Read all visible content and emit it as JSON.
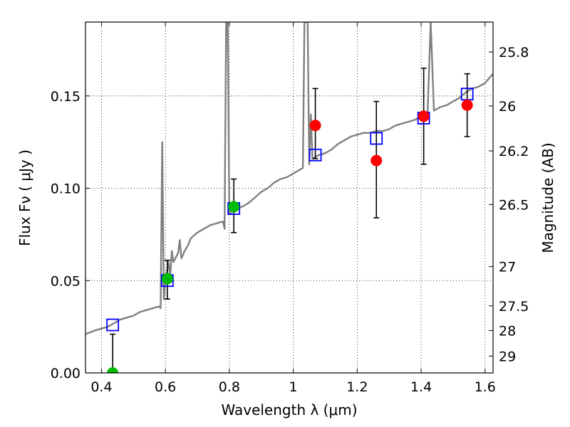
{
  "chart_data": {
    "type": "scatter",
    "xlabel": "Wavelength  λ (μm)",
    "ylabel": "Flux  Fν  ( μJy )",
    "y2label": "Magnitude (AB)",
    "xlim": [
      0.35,
      1.625
    ],
    "ylim": [
      0.0,
      0.19
    ],
    "grid": true,
    "x_ticks": [
      0.4,
      0.6,
      0.8,
      1.0,
      1.2,
      1.4,
      1.6
    ],
    "x_tick_labels": [
      "0.4",
      "0.6",
      "0.8",
      "1",
      "1.2",
      "1.4",
      "1.6"
    ],
    "y_ticks": [
      0.0,
      0.05,
      0.1,
      0.15
    ],
    "y_tick_labels": [
      "0.00",
      "0.05",
      "0.10",
      "0.15"
    ],
    "y2_ticks": [
      {
        "label": "25.8",
        "mag": 25.8
      },
      {
        "label": "26",
        "mag": 26.0
      },
      {
        "label": "26.2",
        "mag": 26.2
      },
      {
        "label": "26.5",
        "mag": 26.5
      },
      {
        "label": "27",
        "mag": 27.0
      },
      {
        "label": "27.5",
        "mag": 27.5
      },
      {
        "label": "28",
        "mag": 28.0
      },
      {
        "label": "29",
        "mag": 29.0
      }
    ],
    "model_spectrum": {
      "color": "#808080",
      "points": [
        [
          0.35,
          0.021
        ],
        [
          0.38,
          0.023
        ],
        [
          0.4,
          0.024
        ],
        [
          0.42,
          0.025
        ],
        [
          0.44,
          0.027
        ],
        [
          0.46,
          0.029
        ],
        [
          0.48,
          0.03
        ],
        [
          0.5,
          0.031
        ],
        [
          0.52,
          0.033
        ],
        [
          0.54,
          0.034
        ],
        [
          0.56,
          0.035
        ],
        [
          0.58,
          0.036
        ],
        [
          0.585,
          0.035
        ],
        [
          0.59,
          0.125
        ],
        [
          0.595,
          0.04
        ],
        [
          0.6,
          0.05
        ],
        [
          0.61,
          0.06
        ],
        [
          0.615,
          0.052
        ],
        [
          0.62,
          0.066
        ],
        [
          0.625,
          0.06
        ],
        [
          0.64,
          0.065
        ],
        [
          0.645,
          0.072
        ],
        [
          0.65,
          0.062
        ],
        [
          0.66,
          0.066
        ],
        [
          0.67,
          0.069
        ],
        [
          0.68,
          0.073
        ],
        [
          0.7,
          0.076
        ],
        [
          0.72,
          0.078
        ],
        [
          0.74,
          0.08
        ],
        [
          0.76,
          0.081
        ],
        [
          0.78,
          0.082
        ],
        [
          0.785,
          0.078
        ],
        [
          0.79,
          0.19
        ],
        [
          0.795,
          0.19
        ],
        [
          0.8,
          0.086
        ],
        [
          0.82,
          0.089
        ],
        [
          0.84,
          0.09
        ],
        [
          0.86,
          0.092
        ],
        [
          0.88,
          0.095
        ],
        [
          0.9,
          0.098
        ],
        [
          0.92,
          0.1
        ],
        [
          0.94,
          0.103
        ],
        [
          0.96,
          0.105
        ],
        [
          0.98,
          0.106
        ],
        [
          1.0,
          0.108
        ],
        [
          1.02,
          0.11
        ],
        [
          1.03,
          0.111
        ],
        [
          1.035,
          0.19
        ],
        [
          1.045,
          0.19
        ],
        [
          1.05,
          0.113
        ],
        [
          1.055,
          0.14
        ],
        [
          1.06,
          0.116
        ],
        [
          1.08,
          0.118
        ],
        [
          1.1,
          0.119
        ],
        [
          1.12,
          0.121
        ],
        [
          1.14,
          0.124
        ],
        [
          1.16,
          0.126
        ],
        [
          1.18,
          0.128
        ],
        [
          1.2,
          0.129
        ],
        [
          1.22,
          0.13
        ],
        [
          1.24,
          0.13
        ],
        [
          1.26,
          0.131
        ],
        [
          1.28,
          0.131
        ],
        [
          1.3,
          0.132
        ],
        [
          1.32,
          0.134
        ],
        [
          1.34,
          0.135
        ],
        [
          1.36,
          0.136
        ],
        [
          1.38,
          0.137
        ],
        [
          1.4,
          0.139
        ],
        [
          1.42,
          0.14
        ],
        [
          1.43,
          0.19
        ],
        [
          1.44,
          0.142
        ],
        [
          1.46,
          0.144
        ],
        [
          1.48,
          0.145
        ],
        [
          1.5,
          0.147
        ],
        [
          1.52,
          0.149
        ],
        [
          1.54,
          0.152
        ],
        [
          1.56,
          0.154
        ],
        [
          1.58,
          0.155
        ],
        [
          1.6,
          0.157
        ],
        [
          1.625,
          0.162
        ]
      ]
    },
    "model_photometry": {
      "marker": "open-square",
      "color": "#0000ff",
      "points": [
        [
          0.435,
          0.026
        ],
        [
          0.606,
          0.05
        ],
        [
          0.814,
          0.089
        ],
        [
          1.069,
          0.118
        ],
        [
          1.26,
          0.127
        ],
        [
          1.408,
          0.138
        ],
        [
          1.544,
          0.151
        ]
      ]
    },
    "observed_detections": {
      "marker": "filled-circle",
      "color": "#00bb00",
      "points": [
        {
          "x": 0.435,
          "y": 0.0,
          "err_low": 0.0,
          "err_high": 0.021
        },
        {
          "x": 0.606,
          "y": 0.051,
          "err_low": 0.04,
          "err_high": 0.061
        },
        {
          "x": 0.814,
          "y": 0.09,
          "err_low": 0.076,
          "err_high": 0.105
        }
      ]
    },
    "observed_red": {
      "marker": "filled-circle",
      "color": "#ff0000",
      "points": [
        {
          "x": 1.069,
          "y": 0.134,
          "err_low": 0.116,
          "err_high": 0.154
        },
        {
          "x": 1.26,
          "y": 0.115,
          "err_low": 0.084,
          "err_high": 0.147
        },
        {
          "x": 1.408,
          "y": 0.139,
          "err_low": 0.113,
          "err_high": 0.165
        },
        {
          "x": 1.544,
          "y": 0.145,
          "err_low": 0.128,
          "err_high": 0.162
        }
      ]
    }
  }
}
